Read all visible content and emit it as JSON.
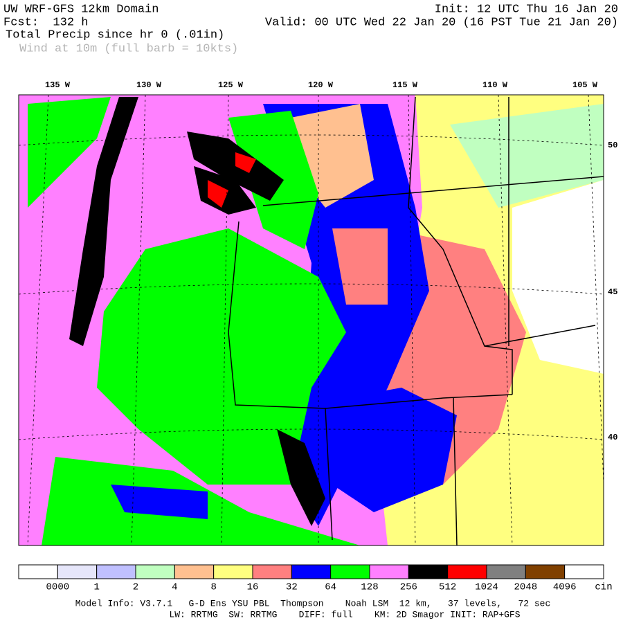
{
  "header": {
    "title": "UW WRF-GFS 12km Domain",
    "forecast": "Fcst:  132 h",
    "field": "Total Precip since hr 0 (.01in)",
    "overlay": "Wind at 10m (full barb = 10kts)",
    "init": "Init: 12 UTC Thu 16 Jan 20",
    "valid": "Valid: 00 UTC Wed 22 Jan 20 (16 PST Tue 21 Jan 20)"
  },
  "map": {
    "longitude_labels": [
      "135 W",
      "130 W",
      "125 W",
      "120 W",
      "115 W",
      "110 W",
      "105 W"
    ],
    "latitude_labels": [
      "50",
      "45",
      "40"
    ]
  },
  "colorbar": {
    "colors": [
      "#ffffff",
      "#e6e6fa",
      "#c0c0ff",
      "#c0ffc0",
      "#ffc090",
      "#ffff80",
      "#ff8080",
      "#0000ff",
      "#00ff00",
      "#ff80ff",
      "#000000",
      "#ff0000",
      "#808080",
      "#804000",
      "#ffffff"
    ],
    "labels": [
      "0000",
      "1",
      "2",
      "4",
      "8",
      "16",
      "32",
      "64",
      "128",
      "256",
      "512",
      "1024",
      "2048",
      "4096"
    ],
    "unit": "cin"
  },
  "footer": {
    "line1": "Model Info: V3.7.1   G-D Ens YSU PBL  Thompson    Noah LSM  12 km,   37 levels,   72 sec",
    "line2": "LW: RRTMG  SW: RRTMG    DIFF: full    KM: 2D Smagor INIT: RAP+GFS"
  }
}
